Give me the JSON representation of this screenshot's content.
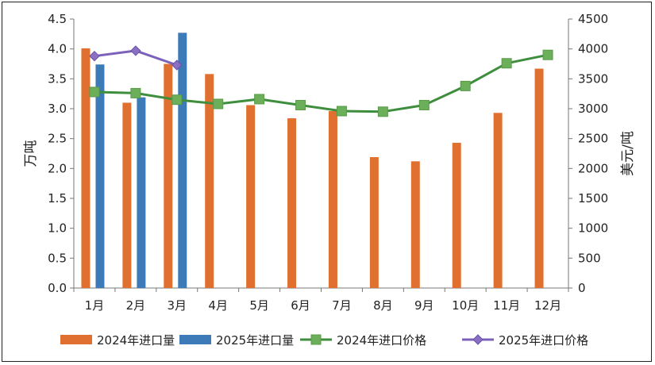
{
  "chart_data": {
    "type": "bar+line",
    "categories": [
      "1月",
      "2月",
      "3月",
      "4月",
      "5月",
      "6月",
      "7月",
      "8月",
      "9月",
      "10月",
      "11月",
      "12月"
    ],
    "left_axis": {
      "label": "万吨",
      "ylim": [
        0,
        4.5
      ],
      "ticks": [
        "0.0",
        "0.5",
        "1.0",
        "1.5",
        "2.0",
        "2.5",
        "3.0",
        "3.5",
        "4.0",
        "4.5"
      ]
    },
    "right_axis": {
      "label": "美元/吨",
      "ylim": [
        0,
        4500
      ],
      "ticks": [
        "0",
        "500",
        "1000",
        "1500",
        "2000",
        "2500",
        "3000",
        "3500",
        "4000",
        "4500"
      ]
    },
    "bar_series": [
      {
        "name": "2024年进口量",
        "color": "#E07030",
        "values": [
          4.01,
          3.1,
          3.75,
          3.58,
          3.06,
          2.84,
          2.96,
          2.19,
          2.12,
          2.43,
          2.93,
          3.67
        ]
      },
      {
        "name": "2025年进口量",
        "color": "#3D7AB8",
        "values": [
          3.74,
          3.19,
          4.27,
          null,
          null,
          null,
          null,
          null,
          null,
          null,
          null,
          null
        ]
      }
    ],
    "line_series": [
      {
        "name": "2024年进口价格",
        "color": "#6BAF5A",
        "line_color": "#3E8E3E",
        "marker": "square",
        "values": [
          3280,
          3260,
          3150,
          3080,
          3160,
          3060,
          2960,
          2950,
          3060,
          3380,
          3760,
          3900
        ]
      },
      {
        "name": "2025年进口价格",
        "color": "#8A6FC2",
        "line_color": "#7B62B8",
        "marker": "diamond",
        "values": [
          3880,
          3970,
          3730,
          null,
          null,
          null,
          null,
          null,
          null,
          null,
          null,
          null
        ]
      }
    ],
    "grid": false,
    "legend_position": "bottom"
  }
}
